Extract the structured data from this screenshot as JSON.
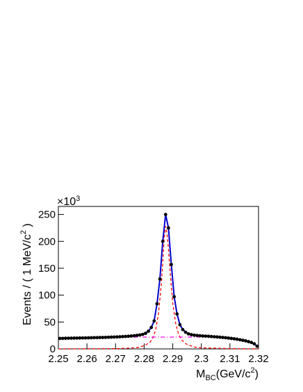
{
  "chart_data": {
    "type": "line",
    "y_multiplier": {
      "text": "×10",
      "sup": "3"
    },
    "xlabel": {
      "text": "M",
      "sub": "BC",
      "tail": "(GeV/c",
      "sup": "2",
      "end": ")"
    },
    "ylabel": {
      "text": "Events / ( 1 MeV/c",
      "sup": "2",
      "tail": " )"
    },
    "xlim": [
      2.25,
      2.32
    ],
    "xticks": [
      2.25,
      2.26,
      2.27,
      2.28,
      2.29,
      2.3,
      2.31,
      2.32
    ],
    "ylim": [
      0,
      265
    ],
    "yticks": [
      0,
      50,
      100,
      150,
      200,
      250
    ],
    "x": [
      2.2505,
      2.2515,
      2.2525,
      2.2535,
      2.2545,
      2.2555,
      2.2565,
      2.2575,
      2.2585,
      2.2595,
      2.2605,
      2.2615,
      2.2625,
      2.2635,
      2.2645,
      2.2655,
      2.2665,
      2.2675,
      2.2685,
      2.2695,
      2.2705,
      2.2715,
      2.2725,
      2.2735,
      2.2745,
      2.2755,
      2.2765,
      2.2775,
      2.2785,
      2.2795,
      2.2805,
      2.2815,
      2.2825,
      2.2835,
      2.2845,
      2.2855,
      2.2865,
      2.2875,
      2.2885,
      2.2895,
      2.2905,
      2.2915,
      2.2925,
      2.2935,
      2.2945,
      2.2955,
      2.2965,
      2.2975,
      2.2985,
      2.2995,
      2.3005,
      2.3015,
      2.3025,
      2.3035,
      2.3045,
      2.3055,
      2.3065,
      2.3075,
      2.3085,
      2.3095,
      2.3105,
      2.3115,
      2.3125,
      2.3135,
      2.3145,
      2.3155,
      2.3165,
      2.3175,
      2.3185,
      2.3195
    ],
    "series": [
      {
        "color": "#0000cc",
        "style": "solid",
        "values": [
          19.5,
          19.6,
          19.8,
          19.9,
          20,
          20.1,
          20.2,
          20.3,
          20.4,
          20.5,
          20.6,
          20.8,
          20.9,
          21,
          21.2,
          21.3,
          21.5,
          21.7,
          21.9,
          22.1,
          22.3,
          22.6,
          22.9,
          23.2,
          23.6,
          24,
          24.6,
          25.2,
          26,
          27,
          29,
          33,
          40,
          52,
          84,
          130,
          200,
          250,
          225,
          157,
          97,
          65,
          45,
          36,
          31,
          28,
          26.5,
          25.5,
          25,
          24.5,
          24,
          23.8,
          23.5,
          23,
          22.6,
          22.2,
          21.8,
          21.3,
          20.8,
          20.2,
          19.5,
          18.8,
          18,
          17,
          16,
          15,
          13.5,
          12,
          9.5,
          5
        ]
      },
      {
        "color": "#ff0000",
        "style": "dashed",
        "x": [
          2.25,
          2.27,
          2.275,
          2.278,
          2.28,
          2.282,
          2.283,
          2.284,
          2.285,
          2.286,
          2.2865,
          2.287,
          2.2875,
          2.288,
          2.2885,
          2.289,
          2.29,
          2.291,
          2.292,
          2.293,
          2.295,
          2.298,
          2.3,
          2.31,
          2.32
        ],
        "values": [
          0,
          0.5,
          1.5,
          3,
          6,
          12,
          20,
          35,
          65,
          120,
          160,
          205,
          228,
          215,
          185,
          150,
          85,
          48,
          28,
          17,
          8,
          3,
          2,
          0.5,
          0
        ]
      },
      {
        "color": "#ff00ff",
        "style": "dashdot",
        "x": [
          2.2763,
          2.2996
        ],
        "values": [
          22,
          22
        ]
      },
      {
        "color": "#000000",
        "style": "markers",
        "values": [
          19.5,
          19.6,
          19.8,
          19.9,
          20,
          20.1,
          20.2,
          20.3,
          20.4,
          20.5,
          20.6,
          20.8,
          20.9,
          21,
          21.2,
          21.3,
          21.5,
          21.7,
          21.9,
          22.1,
          22.3,
          22.6,
          22.9,
          23.2,
          23.6,
          24,
          24.6,
          25.2,
          26,
          27,
          29,
          33,
          40,
          52,
          84,
          130,
          200,
          250,
          225,
          157,
          97,
          65,
          45,
          36,
          31,
          28,
          26.5,
          25.5,
          25,
          24.5,
          24,
          23.8,
          23.5,
          23,
          22.6,
          22.2,
          21.8,
          21.3,
          20.8,
          20.2,
          19.5,
          18.8,
          18,
          17,
          16,
          15,
          13.5,
          12,
          9.5,
          5
        ]
      }
    ]
  }
}
